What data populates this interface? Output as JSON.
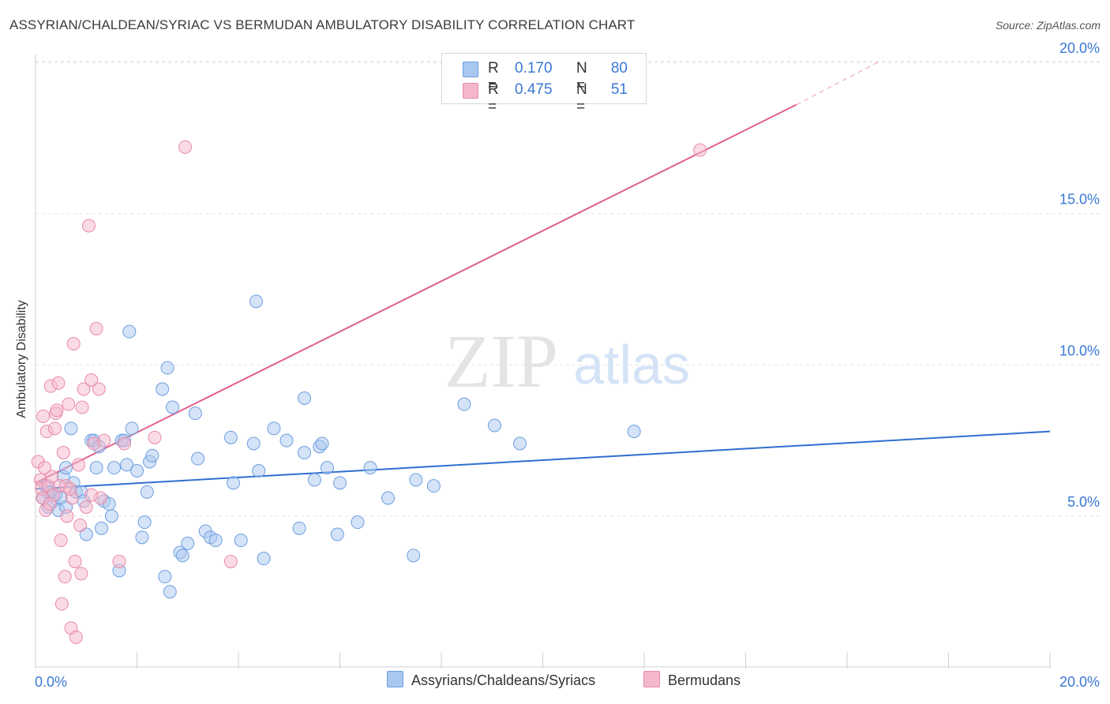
{
  "header": {
    "title": "ASSYRIAN/CHALDEAN/SYRIAC VS BERMUDAN AMBULATORY DISABILITY CORRELATION CHART",
    "source": "Source: ZipAtlas.com"
  },
  "watermark": {
    "zip": "ZIP",
    "atlas": "atlas"
  },
  "legend": {
    "rows": [
      {
        "r_label": "R =",
        "r_value": "0.170",
        "n_label": "N =",
        "n_value": "80"
      },
      {
        "r_label": "R =",
        "r_value": "0.475",
        "n_label": "N =",
        "n_value": "51"
      }
    ]
  },
  "bottom_legend": {
    "series1": "Assyrians/Chaldeans/Syriacs",
    "series2": "Bermudans"
  },
  "colors": {
    "blue_fill": "#a9c8f0",
    "blue_stroke": "#6d9ee0",
    "blue_line": "#2f6fd0",
    "pink_fill": "#f5b8cb",
    "pink_stroke": "#e88aa8",
    "pink_line": "#e0608c",
    "axis_label": "#3a78d4",
    "grid": "#e3e3e3"
  },
  "chart_data": {
    "type": "scatter",
    "title": "ASSYRIAN/CHALDEAN/SYRIAC VS BERMUDAN AMBULATORY DISABILITY CORRELATION CHART",
    "xlabel": "",
    "ylabel": "Ambulatory Disability",
    "xlim": [
      0,
      20
    ],
    "ylim": [
      0,
      20.5
    ],
    "x_tick_labels": [
      "0.0%",
      "20.0%"
    ],
    "y_ticks": [
      5,
      10,
      15,
      20
    ],
    "y_tick_labels": [
      "5.0%",
      "10.0%",
      "15.0%",
      "20.0%"
    ],
    "series": [
      {
        "name": "Assyrians/Chaldeans/Syriacs",
        "R": 0.17,
        "N": 80,
        "trend": {
          "x0": 0,
          "y0": 5.9,
          "x1": 20,
          "y1": 7.8
        },
        "points": [
          [
            0.15,
            5.6
          ],
          [
            0.2,
            6.0
          ],
          [
            0.25,
            5.3
          ],
          [
            0.3,
            5.8
          ],
          [
            0.35,
            5.5
          ],
          [
            0.4,
            5.7
          ],
          [
            0.45,
            5.2
          ],
          [
            0.5,
            5.6
          ],
          [
            0.55,
            6.3
          ],
          [
            0.6,
            6.6
          ],
          [
            0.7,
            7.9
          ],
          [
            0.75,
            6.1
          ],
          [
            0.8,
            5.8
          ],
          [
            0.9,
            5.8
          ],
          [
            0.95,
            5.5
          ],
          [
            1.0,
            4.4
          ],
          [
            1.1,
            7.5
          ],
          [
            1.15,
            7.5
          ],
          [
            1.2,
            6.6
          ],
          [
            1.25,
            7.3
          ],
          [
            1.3,
            4.6
          ],
          [
            1.35,
            5.5
          ],
          [
            1.45,
            5.4
          ],
          [
            1.5,
            5.0
          ],
          [
            1.55,
            6.6
          ],
          [
            1.65,
            3.2
          ],
          [
            1.7,
            7.5
          ],
          [
            1.8,
            6.7
          ],
          [
            1.85,
            11.1
          ],
          [
            1.9,
            7.9
          ],
          [
            2.0,
            6.5
          ],
          [
            2.1,
            4.3
          ],
          [
            2.15,
            4.8
          ],
          [
            2.2,
            5.8
          ],
          [
            2.25,
            6.8
          ],
          [
            2.3,
            7.0
          ],
          [
            2.5,
            9.2
          ],
          [
            2.55,
            3.0
          ],
          [
            2.6,
            9.9
          ],
          [
            2.65,
            2.5
          ],
          [
            2.7,
            8.6
          ],
          [
            2.85,
            3.8
          ],
          [
            2.9,
            3.7
          ],
          [
            3.0,
            4.1
          ],
          [
            3.15,
            8.4
          ],
          [
            3.2,
            6.9
          ],
          [
            3.35,
            4.5
          ],
          [
            3.45,
            4.3
          ],
          [
            3.55,
            4.2
          ],
          [
            3.85,
            7.6
          ],
          [
            3.9,
            6.1
          ],
          [
            4.05,
            4.2
          ],
          [
            4.3,
            7.4
          ],
          [
            4.35,
            12.1
          ],
          [
            4.4,
            6.5
          ],
          [
            4.5,
            3.6
          ],
          [
            4.7,
            7.9
          ],
          [
            4.95,
            7.5
          ],
          [
            5.2,
            4.6
          ],
          [
            5.3,
            7.1
          ],
          [
            5.3,
            8.9
          ],
          [
            5.5,
            6.2
          ],
          [
            5.6,
            7.3
          ],
          [
            5.65,
            7.4
          ],
          [
            5.75,
            6.6
          ],
          [
            5.95,
            4.4
          ],
          [
            6.0,
            6.1
          ],
          [
            6.35,
            4.8
          ],
          [
            6.6,
            6.6
          ],
          [
            6.95,
            5.6
          ],
          [
            7.45,
            3.7
          ],
          [
            7.5,
            6.2
          ],
          [
            7.85,
            6.0
          ],
          [
            8.45,
            8.7
          ],
          [
            9.05,
            8.0
          ],
          [
            9.55,
            7.4
          ],
          [
            11.8,
            7.8
          ],
          [
            0.25,
            5.8
          ],
          [
            0.6,
            5.3
          ],
          [
            1.75,
            7.5
          ]
        ]
      },
      {
        "name": "Bermudans",
        "R": 0.475,
        "N": 51,
        "trend": {
          "x0": 0,
          "y0": 6.1,
          "x1": 15.0,
          "y1": 18.6,
          "dash_x1": 16.6,
          "dash_y1": 20.0
        },
        "points": [
          [
            0.05,
            6.8
          ],
          [
            0.1,
            6.2
          ],
          [
            0.12,
            5.9
          ],
          [
            0.15,
            8.3
          ],
          [
            0.18,
            6.6
          ],
          [
            0.2,
            5.2
          ],
          [
            0.22,
            7.8
          ],
          [
            0.25,
            6.0
          ],
          [
            0.3,
            9.3
          ],
          [
            0.32,
            6.3
          ],
          [
            0.35,
            5.7
          ],
          [
            0.38,
            7.9
          ],
          [
            0.4,
            8.4
          ],
          [
            0.42,
            8.5
          ],
          [
            0.45,
            9.4
          ],
          [
            0.48,
            6.0
          ],
          [
            0.5,
            4.2
          ],
          [
            0.52,
            2.1
          ],
          [
            0.55,
            7.1
          ],
          [
            0.58,
            3.0
          ],
          [
            0.6,
            6.0
          ],
          [
            0.62,
            5.0
          ],
          [
            0.65,
            8.7
          ],
          [
            0.7,
            1.3
          ],
          [
            0.72,
            5.6
          ],
          [
            0.75,
            10.7
          ],
          [
            0.78,
            3.5
          ],
          [
            0.8,
            1.0
          ],
          [
            0.85,
            6.7
          ],
          [
            0.88,
            4.7
          ],
          [
            0.9,
            3.1
          ],
          [
            0.92,
            8.6
          ],
          [
            0.95,
            9.2
          ],
          [
            1.0,
            5.3
          ],
          [
            1.05,
            14.6
          ],
          [
            1.1,
            9.5
          ],
          [
            1.15,
            7.4
          ],
          [
            1.2,
            11.2
          ],
          [
            1.25,
            9.2
          ],
          [
            1.28,
            5.6
          ],
          [
            1.35,
            7.5
          ],
          [
            1.65,
            3.5
          ],
          [
            1.75,
            7.4
          ],
          [
            2.35,
            7.6
          ],
          [
            2.95,
            17.2
          ],
          [
            3.85,
            3.5
          ],
          [
            13.1,
            17.1
          ],
          [
            0.14,
            5.6
          ],
          [
            0.28,
            5.4
          ],
          [
            0.68,
            5.9
          ],
          [
            1.1,
            5.7
          ]
        ]
      }
    ]
  }
}
